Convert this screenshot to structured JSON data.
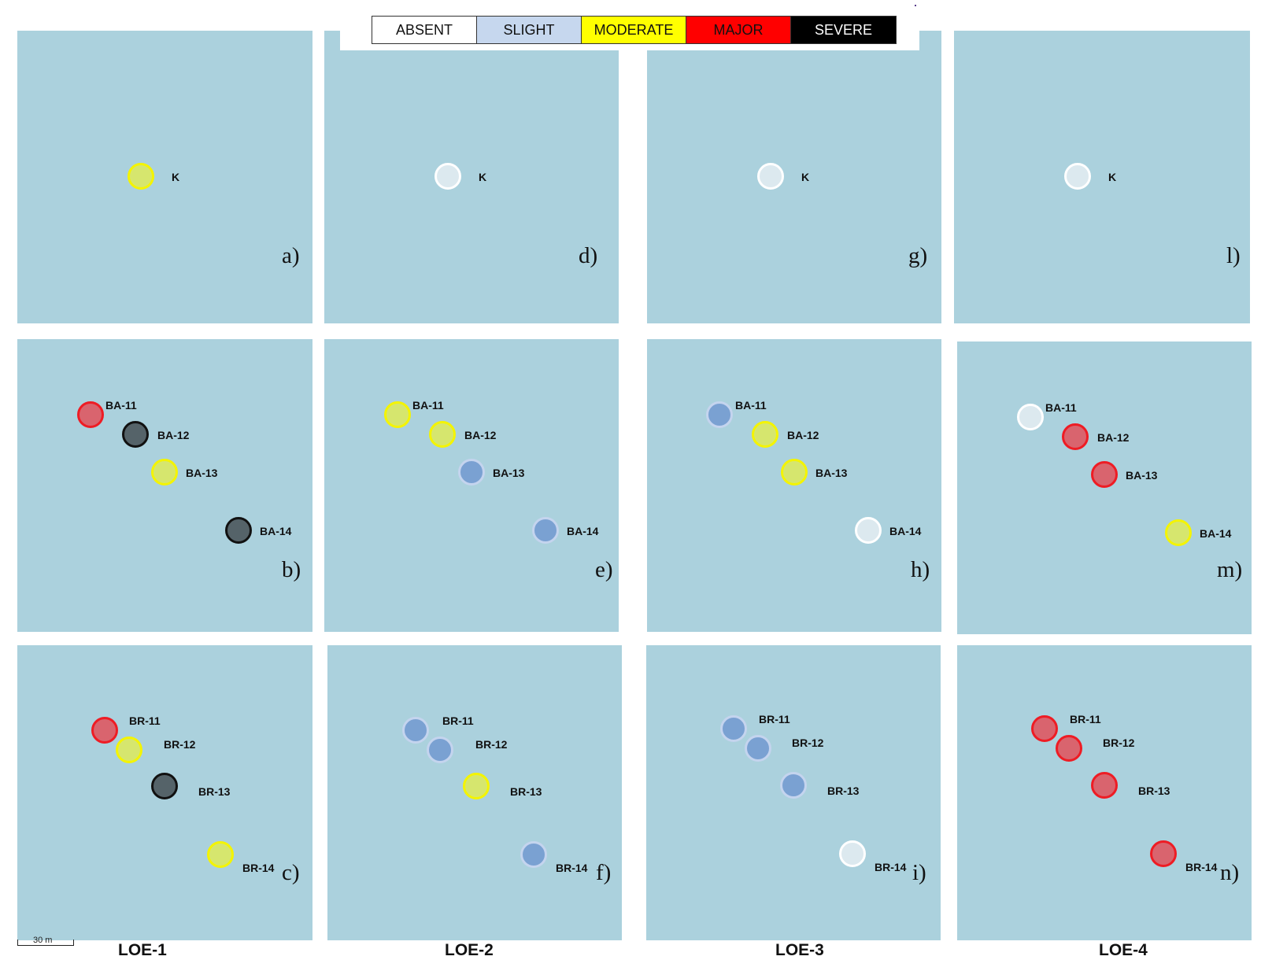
{
  "legend": [
    {
      "label": "ABSENT",
      "bg": "#ffffff",
      "text": "#111111"
    },
    {
      "label": "SLIGHT",
      "bg": "#c6d7ee",
      "text": "#111111"
    },
    {
      "label": "MODERATE",
      "bg": "#ffff00",
      "text": "#111111"
    },
    {
      "label": "MAJOR",
      "bg": "#ff0000",
      "text": "#111111"
    },
    {
      "label": "SEVERE",
      "bg": "#000000",
      "text": "#ffffff"
    }
  ],
  "class_colors": {
    "ABSENT": {
      "fill": "#dce9ef",
      "stroke": "#ffffff"
    },
    "SLIGHT": {
      "fill": "#7aa1d2",
      "stroke": "#c4d4ee"
    },
    "MODERATE": {
      "fill": "#d6e66e",
      "stroke": "#f4f400"
    },
    "MAJOR": {
      "fill": "#d9646e",
      "stroke": "#ee1c24"
    },
    "SEVERE": {
      "fill": "#556369",
      "stroke": "#111111"
    }
  },
  "panels": [
    {
      "label": "a)",
      "loe": "LOE-1",
      "stations": [
        {
          "id": "K",
          "class": "MODERATE"
        }
      ]
    },
    {
      "label": "b)",
      "loe": "LOE-1",
      "stations": [
        {
          "id": "BA-11",
          "class": "MAJOR"
        },
        {
          "id": "BA-12",
          "class": "SEVERE"
        },
        {
          "id": "BA-13",
          "class": "MODERATE"
        },
        {
          "id": "BA-14",
          "class": "SEVERE"
        }
      ]
    },
    {
      "label": "c)",
      "loe": "LOE-1",
      "stations": [
        {
          "id": "BR-11",
          "class": "MAJOR"
        },
        {
          "id": "BR-12",
          "class": "MODERATE"
        },
        {
          "id": "BR-13",
          "class": "SEVERE"
        },
        {
          "id": "BR-14",
          "class": "MODERATE"
        }
      ]
    },
    {
      "label": "d)",
      "loe": "LOE-2",
      "stations": [
        {
          "id": "K",
          "class": "ABSENT"
        }
      ]
    },
    {
      "label": "e)",
      "loe": "LOE-2",
      "stations": [
        {
          "id": "BA-11",
          "class": "MODERATE"
        },
        {
          "id": "BA-12",
          "class": "MODERATE"
        },
        {
          "id": "BA-13",
          "class": "SLIGHT"
        },
        {
          "id": "BA-14",
          "class": "SLIGHT"
        }
      ]
    },
    {
      "label": "f)",
      "loe": "LOE-2",
      "stations": [
        {
          "id": "BR-11",
          "class": "SLIGHT"
        },
        {
          "id": "BR-12",
          "class": "SLIGHT"
        },
        {
          "id": "BR-13",
          "class": "MODERATE"
        },
        {
          "id": "BR-14",
          "class": "SLIGHT"
        }
      ]
    },
    {
      "label": "g)",
      "loe": "LOE-3",
      "stations": [
        {
          "id": "K",
          "class": "ABSENT"
        }
      ]
    },
    {
      "label": "h)",
      "loe": "LOE-3",
      "stations": [
        {
          "id": "BA-11",
          "class": "SLIGHT"
        },
        {
          "id": "BA-12",
          "class": "MODERATE"
        },
        {
          "id": "BA-13",
          "class": "MODERATE"
        },
        {
          "id": "BA-14",
          "class": "ABSENT"
        }
      ]
    },
    {
      "label": "i)",
      "loe": "LOE-3",
      "stations": [
        {
          "id": "BR-11",
          "class": "SLIGHT"
        },
        {
          "id": "BR-12",
          "class": "SLIGHT"
        },
        {
          "id": "BR-13",
          "class": "SLIGHT"
        },
        {
          "id": "BR-14",
          "class": "ABSENT"
        }
      ]
    },
    {
      "label": "l)",
      "loe": "LOE-4",
      "stations": [
        {
          "id": "K",
          "class": "ABSENT"
        }
      ]
    },
    {
      "label": "m)",
      "loe": "LOE-4",
      "stations": [
        {
          "id": "BA-11",
          "class": "ABSENT"
        },
        {
          "id": "BA-12",
          "class": "MAJOR"
        },
        {
          "id": "BA-13",
          "class": "MAJOR"
        },
        {
          "id": "BA-14",
          "class": "MODERATE"
        }
      ]
    },
    {
      "label": "n)",
      "loe": "LOE-4",
      "stations": [
        {
          "id": "BR-11",
          "class": "MAJOR"
        },
        {
          "id": "BR-12",
          "class": "MAJOR"
        },
        {
          "id": "BR-13",
          "class": "MAJOR"
        },
        {
          "id": "BR-14",
          "class": "MAJOR"
        }
      ]
    }
  ],
  "columns": [
    "LOE-1",
    "LOE-2",
    "LOE-3",
    "LOE-4"
  ],
  "scale_bar": "30 m"
}
